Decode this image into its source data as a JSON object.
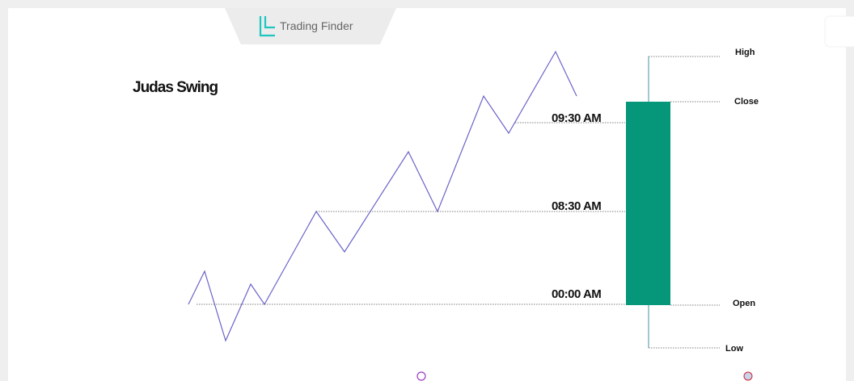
{
  "brand": "Trading Finder",
  "title": "Judas Swing",
  "time_labels": [
    "09:30 AM",
    "08:30 AM",
    "00:00 AM"
  ],
  "candle_labels": {
    "high": "High",
    "close": "Close",
    "open": "Open",
    "low": "Low"
  }
}
